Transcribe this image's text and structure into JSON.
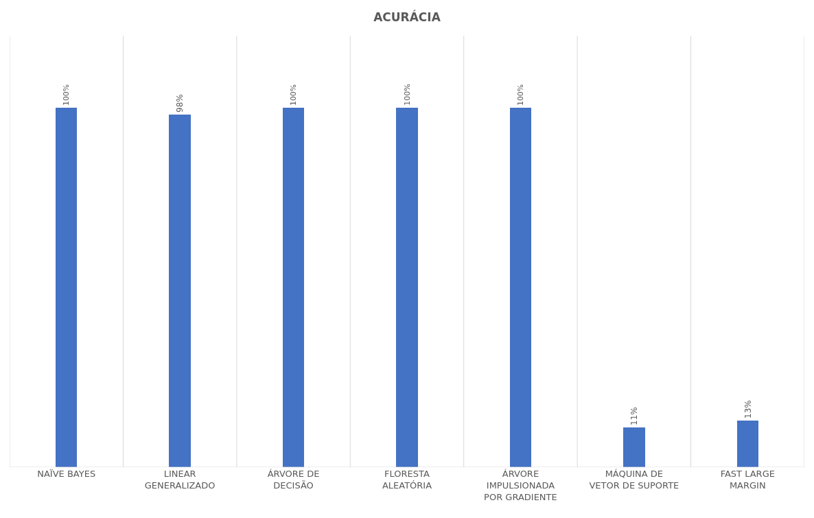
{
  "chart_data": {
    "type": "bar",
    "title": "ACURÁCIA",
    "categories": [
      "NAÏVE BAYES",
      "LINEAR\nGENERALIZADO",
      "ÁRVORE DE\nDECISÃO",
      "FLORESTA\nALEATÓRIA",
      "ÁRVORE\nIMPULSIONADA\nPOR GRADIENTE",
      "MÁQUINA DE\nVETOR DE SUPORTE",
      "FAST LARGE\nMARGIN"
    ],
    "values": [
      100,
      98,
      100,
      100,
      100,
      11,
      13
    ],
    "value_labels": [
      "100%",
      "98%",
      "100%",
      "100%",
      "100%",
      "11%",
      "13%"
    ],
    "color": "#4472c4",
    "ylim": [
      0,
      120
    ],
    "grid": "x"
  }
}
